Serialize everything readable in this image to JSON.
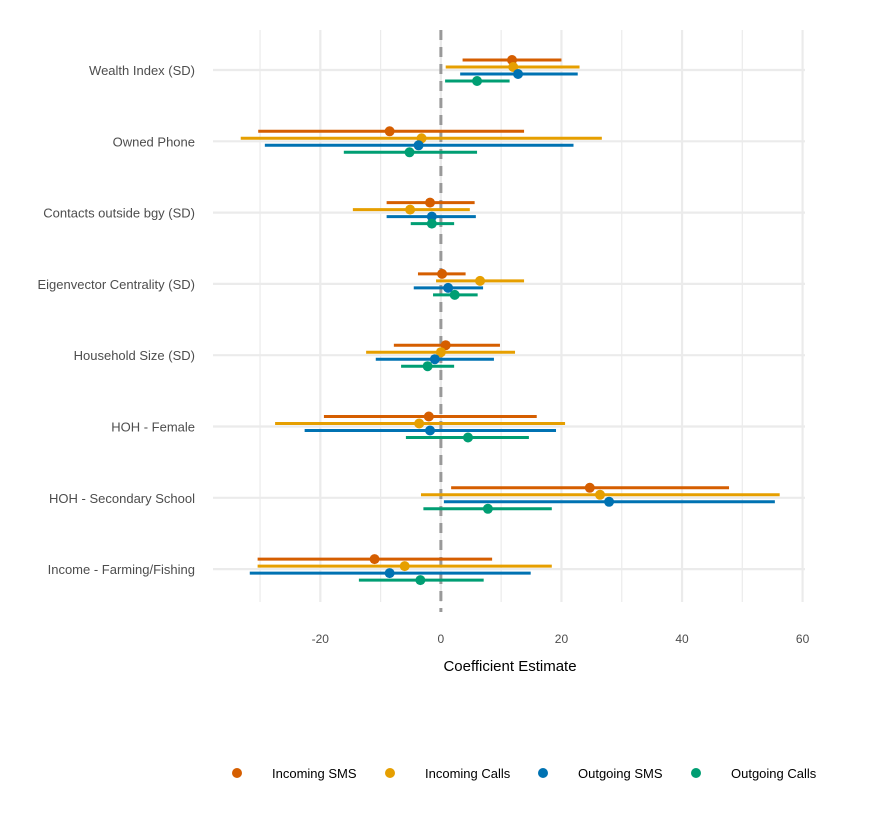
{
  "chart_data": {
    "type": "forest",
    "title": "",
    "xlabel": "Coefficient Estimate",
    "ylabel": "",
    "xlim": [
      -37.8,
      60.4
    ],
    "xticks": [
      -20,
      0,
      20,
      40,
      60
    ],
    "xtick_labels": [
      "-20",
      "0",
      "20",
      "40",
      "60"
    ],
    "grid": true,
    "reference_line": {
      "x": 0,
      "style": "dashed",
      "color": "#999999"
    },
    "legend_placement": "bottom",
    "categories": [
      "Wealth Index (SD)",
      "Owned Phone",
      "Contacts outside bgy (SD)",
      "Eigenvector Centrality (SD)",
      "Household Size (SD)",
      "HOH - Female",
      "HOH - Secondary School",
      "Income - Farming/Fishing"
    ],
    "series": [
      {
        "name": "Incoming SMS",
        "color": "#D55E00",
        "estimate": [
          11.8,
          -8.5,
          -1.8,
          0.2,
          0.8,
          -2.0,
          24.7,
          -11.0
        ],
        "lower": [
          3.6,
          -30.3,
          -9.0,
          -3.8,
          -7.8,
          -19.4,
          1.7,
          -30.4
        ],
        "upper": [
          20.0,
          13.8,
          5.6,
          4.1,
          9.8,
          15.9,
          47.8,
          8.5
        ]
      },
      {
        "name": "Incoming Calls",
        "color": "#E69F00",
        "estimate": [
          12.0,
          -3.2,
          -5.1,
          6.5,
          0.0,
          -3.6,
          26.4,
          -6.0
        ],
        "lower": [
          0.8,
          -33.2,
          -14.6,
          -0.8,
          -12.4,
          -27.5,
          -3.3,
          -30.4
        ],
        "upper": [
          23.0,
          26.7,
          4.8,
          13.8,
          12.3,
          20.6,
          56.2,
          18.4
        ]
      },
      {
        "name": "Outgoing SMS",
        "color": "#0072B2",
        "estimate": [
          12.8,
          -3.7,
          -1.5,
          1.2,
          -1.0,
          -1.8,
          27.9,
          -8.5
        ],
        "lower": [
          3.2,
          -29.2,
          -9.0,
          -4.5,
          -10.8,
          -22.6,
          0.5,
          -31.7
        ],
        "upper": [
          22.7,
          22.0,
          5.8,
          7.0,
          8.8,
          19.1,
          55.4,
          14.9
        ]
      },
      {
        "name": "Outgoing Calls",
        "color": "#009E73",
        "estimate": [
          6.0,
          -5.2,
          -1.5,
          2.3,
          -2.2,
          4.5,
          7.8,
          -3.4
        ],
        "lower": [
          0.7,
          -16.1,
          -5.0,
          -1.3,
          -6.6,
          -5.8,
          -2.9,
          -13.6
        ],
        "upper": [
          11.4,
          6.0,
          2.2,
          6.1,
          2.2,
          14.6,
          18.4,
          7.1
        ]
      }
    ]
  }
}
